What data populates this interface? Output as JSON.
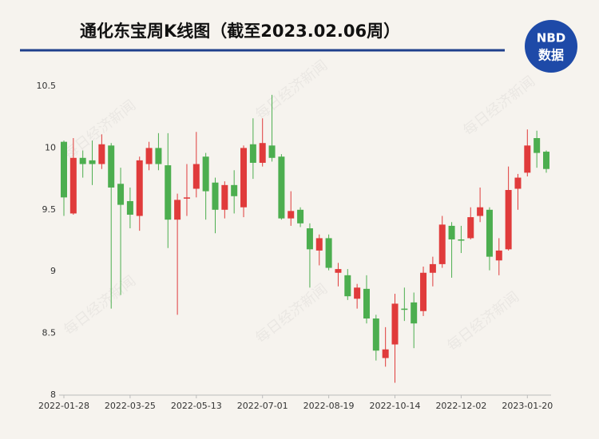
{
  "chart_data": {
    "type": "candlestick",
    "title": "通化东宝周K线图（截至2023.02.06周）",
    "categories": [
      "2022-01-28",
      null,
      null,
      null,
      null,
      null,
      null,
      "2022-03-25",
      null,
      null,
      null,
      null,
      null,
      null,
      "2022-05-13",
      null,
      null,
      null,
      null,
      null,
      null,
      "2022-07-01",
      null,
      null,
      null,
      null,
      null,
      null,
      "2022-08-19",
      null,
      null,
      null,
      null,
      null,
      null,
      "2022-10-14",
      null,
      null,
      null,
      null,
      null,
      null,
      "2022-12-02",
      null,
      null,
      null,
      null,
      null,
      null,
      "2023-01-20",
      null,
      null
    ],
    "open": [
      10.05,
      9.47,
      9.92,
      9.9,
      9.87,
      10.02,
      9.71,
      9.57,
      9.45,
      9.87,
      10.0,
      9.86,
      9.42,
      9.59,
      9.67,
      9.93,
      9.72,
      9.5,
      9.7,
      9.52,
      10.03,
      9.88,
      10.02,
      9.93,
      9.43,
      9.5,
      9.35,
      9.17,
      9.27,
      8.99,
      8.97,
      8.78,
      8.86,
      8.62,
      8.3,
      8.41,
      8.7,
      8.75,
      8.68,
      8.99,
      9.06,
      9.37,
      9.26,
      9.27,
      9.45,
      9.5,
      9.09,
      9.18,
      9.67,
      9.8,
      10.08,
      9.97
    ],
    "high": [
      10.06,
      10.08,
      9.98,
      10.06,
      10.11,
      10.04,
      9.84,
      9.68,
      9.93,
      10.05,
      10.12,
      10.12,
      9.63,
      9.87,
      10.13,
      9.96,
      9.76,
      9.73,
      9.82,
      10.02,
      10.24,
      10.24,
      10.43,
      9.95,
      9.65,
      9.52,
      9.39,
      9.3,
      9.3,
      9.07,
      9.02,
      8.9,
      8.97,
      8.65,
      8.55,
      8.82,
      8.87,
      8.83,
      9.04,
      9.12,
      9.45,
      9.4,
      9.37,
      9.52,
      9.68,
      9.52,
      9.27,
      9.85,
      9.79,
      10.15,
      10.14,
      9.98
    ],
    "low": [
      9.45,
      9.46,
      9.76,
      9.7,
      9.83,
      8.7,
      8.81,
      9.35,
      9.33,
      9.82,
      9.82,
      9.19,
      8.65,
      9.45,
      9.6,
      9.42,
      9.31,
      9.43,
      9.47,
      9.44,
      9.75,
      9.85,
      9.89,
      9.42,
      9.37,
      9.36,
      8.87,
      9.05,
      9.01,
      8.88,
      8.77,
      8.7,
      8.58,
      8.28,
      8.23,
      8.1,
      8.6,
      8.38,
      8.64,
      8.88,
      9.03,
      8.95,
      9.15,
      9.26,
      9.4,
      9.01,
      8.97,
      9.17,
      9.5,
      9.77,
      9.84,
      9.8
    ],
    "close": [
      9.6,
      9.92,
      9.87,
      9.87,
      10.03,
      9.68,
      9.54,
      9.46,
      9.9,
      10.0,
      9.87,
      9.42,
      9.58,
      9.6,
      9.87,
      9.65,
      9.5,
      9.7,
      9.61,
      10.0,
      9.88,
      10.04,
      9.92,
      9.43,
      9.49,
      9.39,
      9.18,
      9.27,
      9.03,
      9.02,
      8.8,
      8.87,
      8.62,
      8.36,
      8.37,
      8.74,
      8.69,
      8.58,
      8.99,
      9.06,
      9.38,
      9.26,
      9.25,
      9.44,
      9.52,
      9.12,
      9.17,
      9.66,
      9.76,
      10.02,
      9.96,
      9.83
    ],
    "up_color": "#e03b3b",
    "down_color": "#4cae4f",
    "ylim": [
      8,
      10.5
    ],
    "yticks": [
      8,
      8.5,
      9,
      9.5,
      10,
      10.5
    ],
    "grid": false
  },
  "logo": {
    "top": "NBD",
    "bottom": "数据"
  },
  "watermark": "每日经济新闻"
}
